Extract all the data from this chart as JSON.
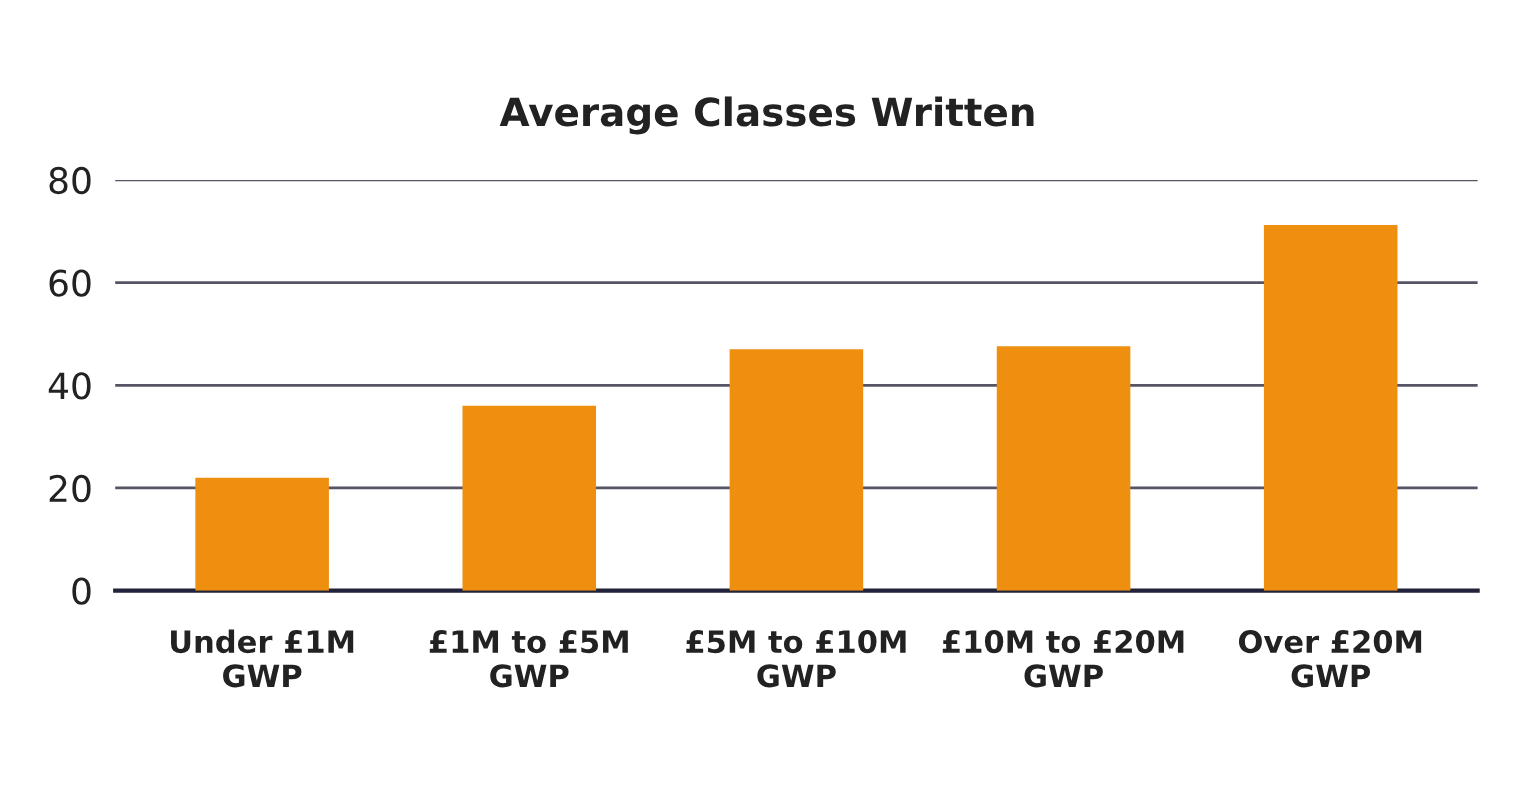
{
  "chart_data": {
    "type": "bar",
    "title": "Average Classes Written",
    "categories": [
      "Under £1M\nGWP",
      "£1M to £5M\nGWP",
      "£5M to £10M\nGWP",
      "£10M to £20M\nGWP",
      "Over £20M\nGWP"
    ],
    "values": [
      22,
      36,
      47,
      47.6,
      71.2
    ],
    "color": "#ee8f10",
    "ylim": [
      0,
      80
    ],
    "yticks": [
      0,
      20,
      40,
      60,
      80
    ],
    "grid": "y",
    "legend": false
  }
}
